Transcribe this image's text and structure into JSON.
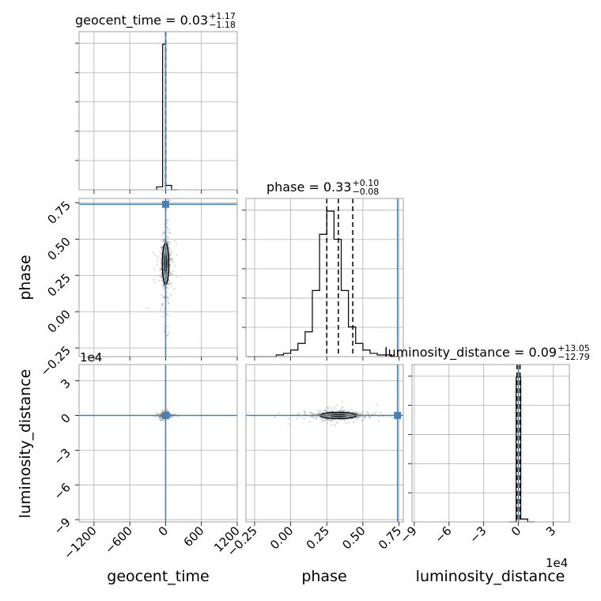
{
  "chart_data": {
    "type": "corner",
    "parameters": [
      "geocent_time",
      "phase",
      "luminosity_distance"
    ],
    "titles": [
      {
        "param": "geocent_time",
        "text": "geocent_time = 0.03",
        "plus": "+1.17",
        "minus": "−1.18"
      },
      {
        "param": "phase",
        "text": "phase = 0.33",
        "plus": "+0.10",
        "minus": "−0.08"
      },
      {
        "param": "luminosity_distance",
        "text": "luminosity_distance = 0.09",
        "plus": "+13.05",
        "minus": "−12.79"
      }
    ],
    "truths": {
      "geocent_time": 0.0,
      "phase": 0.74,
      "luminosity_distance": 0.0
    },
    "ranges": {
      "geocent_time": [
        -1450,
        1200
      ],
      "phase": [
        -0.31,
        0.78
      ],
      "luminosity_distance": [
        -92000,
        44000
      ]
    },
    "ticks": {
      "geocent_time": {
        "values": [
          -1200,
          -600,
          0,
          600,
          1200
        ],
        "labels": [
          "−1200",
          "−600",
          "0",
          "600",
          "1200"
        ]
      },
      "phase": {
        "values": [
          -0.25,
          0.0,
          0.25,
          0.5,
          0.75
        ],
        "labels": [
          "−0.25",
          "0.00",
          "0.25",
          "0.50",
          "0.75"
        ]
      },
      "luminosity_distance_y": {
        "values": [
          30000,
          0,
          -30000,
          -60000,
          -90000
        ],
        "labels": [
          "3",
          "0",
          "−3",
          "−6",
          "−9"
        ]
      },
      "luminosity_distance_x": {
        "values": [
          -90000,
          -60000,
          -30000,
          0,
          30000
        ],
        "labels": [
          "−9",
          "−6",
          "−3",
          "0",
          "3"
        ]
      }
    },
    "offset_label": "1e4",
    "histograms": {
      "geocent_time": {
        "bin_edges": [
          -150,
          -50,
          0,
          100,
          200
        ],
        "counts": [
          0.02,
          1.0,
          0.03,
          0.0
        ],
        "quantile_lines": [
          -1.15,
          0.03,
          1.2
        ]
      },
      "phase": {
        "bin_edges": [
          -0.3,
          -0.1,
          -0.05,
          0.0,
          0.05,
          0.1,
          0.15,
          0.2,
          0.25,
          0.3,
          0.35,
          0.4,
          0.45,
          0.5,
          0.55,
          0.6,
          0.65,
          0.7,
          0.75
        ],
        "counts": [
          0.0,
          0.01,
          0.02,
          0.04,
          0.08,
          0.15,
          0.4,
          0.74,
          0.88,
          0.71,
          0.4,
          0.18,
          0.08,
          0.04,
          0.02,
          0.01,
          0.01,
          0.0
        ],
        "quantile_lines": [
          0.25,
          0.33,
          0.43
        ]
      },
      "luminosity_distance": {
        "bin_edges": [
          -8000,
          -2000,
          2000,
          8000,
          14000
        ],
        "counts": [
          0.0,
          1.0,
          0.02,
          0.0
        ],
        "quantile_lines": [
          -1270,
          90,
          1395
        ]
      }
    },
    "scatter_centers": {
      "phase_vs_geocent_time": {
        "x": 0.0,
        "y": 0.33,
        "sx": 30,
        "sy": 0.08
      },
      "luminosity_distance_vs_geocent_time": {
        "x": 0.0,
        "y": 0.0,
        "sx": 30,
        "sy": 800
      },
      "luminosity_distance_vs_phase": {
        "x": 0.33,
        "y": 0.0,
        "sx": 0.07,
        "sy": 1500
      }
    },
    "grid": true
  }
}
